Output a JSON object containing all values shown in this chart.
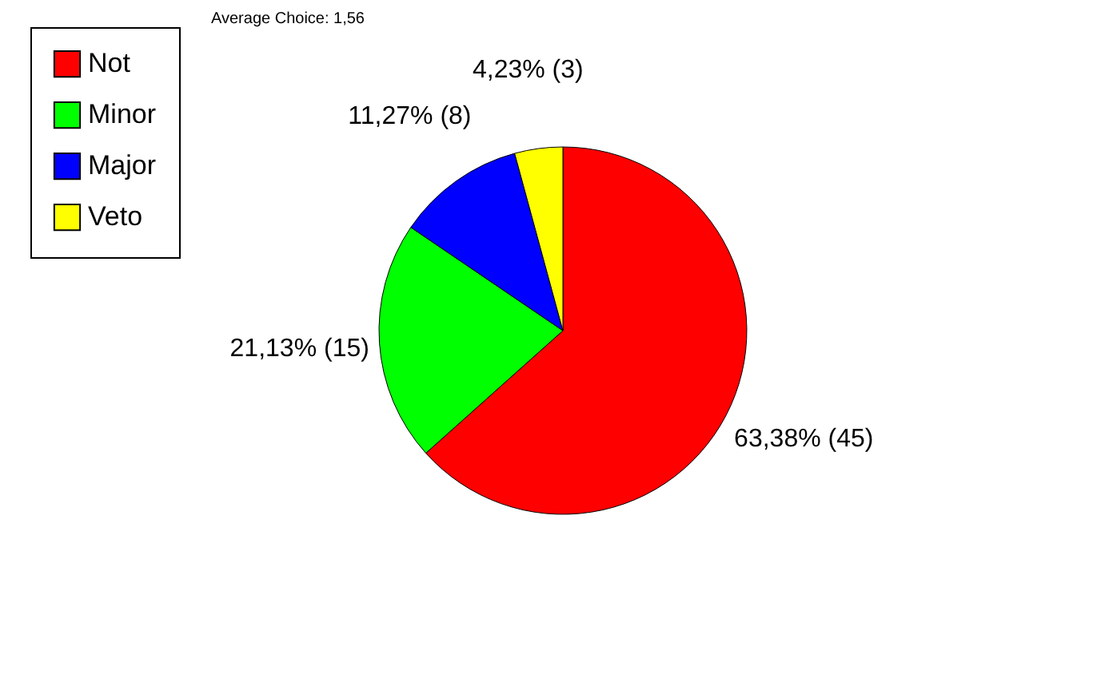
{
  "chart_data": {
    "type": "pie",
    "title": "Average Choice: 1,56",
    "categories": [
      "Not",
      "Minor",
      "Major",
      "Veto"
    ],
    "values": [
      45,
      15,
      8,
      3
    ],
    "colors": [
      "#ff0000",
      "#00ff00",
      "#0000ff",
      "#ffff00"
    ],
    "value_labels": [
      "63,38% (45)",
      "21,13% (15)",
      "11,27% (8)",
      "4,23% (3)"
    ],
    "legend": "left"
  }
}
